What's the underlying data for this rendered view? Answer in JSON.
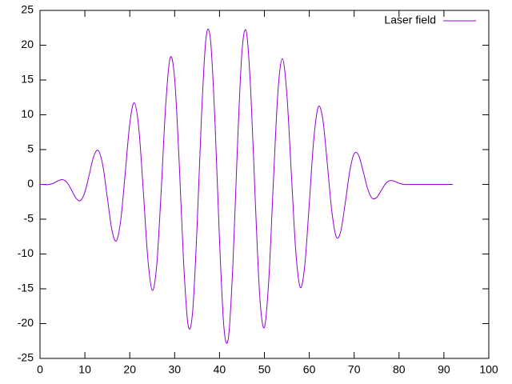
{
  "chart_data": {
    "type": "line",
    "x": [
      0,
      1,
      2,
      3,
      4,
      5,
      6,
      7,
      8,
      9,
      10,
      11,
      12,
      13,
      14,
      15,
      16,
      17,
      18,
      19,
      20,
      21,
      22,
      23,
      24,
      25,
      26,
      27,
      28,
      29,
      30,
      31,
      32,
      33,
      34,
      35,
      36,
      37,
      38,
      39,
      40,
      41,
      42,
      43,
      44,
      45,
      46,
      47,
      48,
      49,
      50,
      51,
      52,
      53,
      54,
      55,
      56,
      57,
      58,
      59,
      60,
      61,
      62,
      63,
      64,
      65,
      66,
      67,
      68,
      69,
      70,
      71,
      72,
      73,
      74,
      75,
      76,
      77,
      78,
      79,
      80,
      81,
      82,
      83,
      92
    ],
    "series": [
      {
        "name": "Laser field",
        "color": "#9400d3",
        "values": [
          0,
          -0.03,
          -0.02,
          0.17,
          0.52,
          0.69,
          0.29,
          -0.78,
          -1.96,
          -2.33,
          -1.11,
          1.47,
          4.08,
          4.86,
          2.7,
          -1.88,
          -6.48,
          -8.12,
          -5.09,
          1.7,
          8.72,
          11.72,
          8.17,
          -0.76,
          -10.46,
          -15.22,
          -11.65,
          -0.96,
          11.32,
          18.2,
          15.19,
          3.36,
          -11.22,
          -20.23,
          -18.35,
          -6.07,
          10.09,
          21.1,
          20.68,
          8.81,
          -8.05,
          -20.68,
          -21.94,
          -11.22,
          5.56,
          19.04,
          21.88,
          12.85,
          -2.85,
          -16.41,
          -20.55,
          -13.49,
          0.37,
          13.15,
          18.07,
          12.99,
          1.58,
          -9.69,
          -14.8,
          -11.6,
          -2.73,
          6.47,
          11.12,
          9.42,
          3.09,
          -3.74,
          -7.52,
          -6.77,
          -2.74,
          1.82,
          4.41,
          4.15,
          1.89,
          -0.62,
          -1.99,
          -1.89,
          -0.9,
          0.1,
          0.55,
          0.45,
          0.17,
          0,
          -0.01,
          0,
          0
        ]
      }
    ],
    "xlim": [
      0,
      100
    ],
    "xticks": [
      0,
      10,
      20,
      30,
      40,
      50,
      60,
      70,
      80,
      90,
      100
    ],
    "ylim": [
      -25,
      25
    ],
    "yticks": [
      -25,
      -20,
      -15,
      -10,
      -5,
      0,
      5,
      10,
      15,
      20,
      25
    ],
    "grid": false,
    "legend": "top-right"
  }
}
